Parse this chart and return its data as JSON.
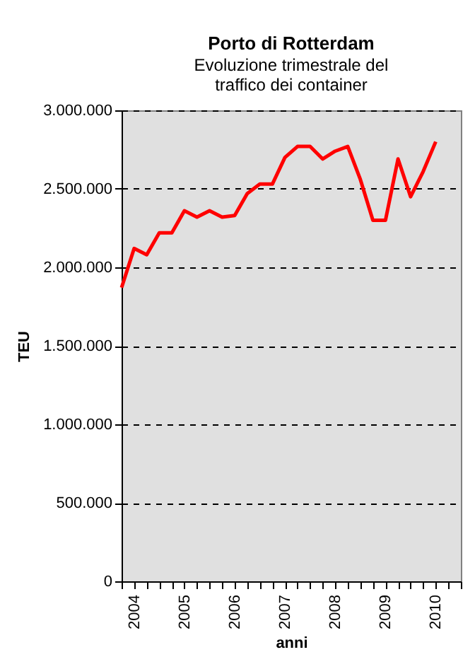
{
  "chart_data": {
    "type": "line",
    "title": "Porto di Rotterdam",
    "subtitle": "Evoluzione trimestrale del traffico dei container",
    "xlabel": "anni",
    "ylabel": "TEU",
    "categories": [
      null,
      "2004",
      null,
      null,
      null,
      "2005",
      null,
      null,
      null,
      "2006",
      null,
      null,
      null,
      "2007",
      null,
      null,
      null,
      "2008",
      null,
      null,
      null,
      "2009",
      null,
      null,
      null,
      "2010",
      null,
      null
    ],
    "series": [
      {
        "color": "#ff0000",
        "values": [
          1870000,
          2120000,
          2080000,
          2220000,
          2220000,
          2360000,
          2320000,
          2360000,
          2320000,
          2330000,
          2470000,
          2530000,
          2530000,
          2700000,
          2770000,
          2770000,
          2690000,
          2740000,
          2770000,
          2560000,
          2300000,
          2300000,
          2690000,
          2450000,
          2610000,
          2800000,
          null,
          null
        ]
      }
    ],
    "ylim": [
      0,
      3000000
    ],
    "yticks": [
      {
        "value": 0,
        "label": "0"
      },
      {
        "value": 500000,
        "label": "500.000"
      },
      {
        "value": 1000000,
        "label": "1.000.000"
      },
      {
        "value": 1500000,
        "label": "1.500.000"
      },
      {
        "value": 2000000,
        "label": "2.000.000"
      },
      {
        "value": 2500000,
        "label": "2.500.000"
      },
      {
        "value": 3000000,
        "label": "3.000.000"
      }
    ],
    "grid": "y",
    "marker": "none",
    "line_style": "solid",
    "legend": false
  }
}
